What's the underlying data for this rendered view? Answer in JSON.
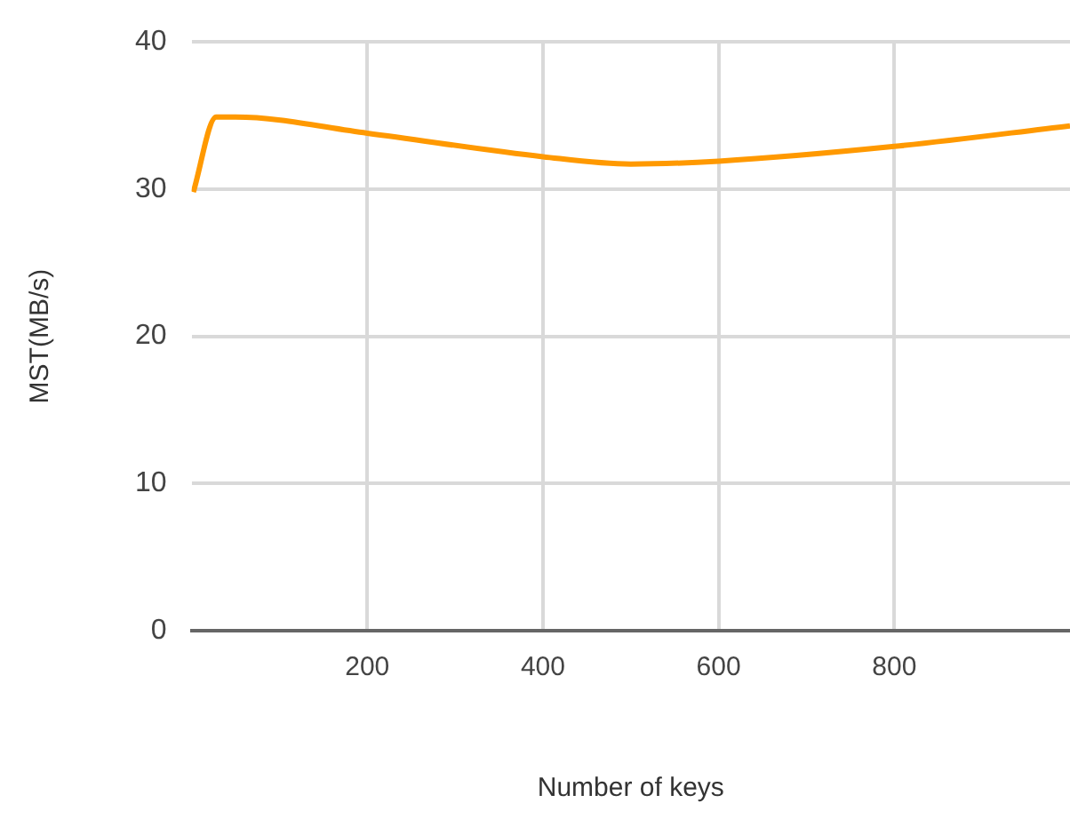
{
  "chart_data": {
    "type": "line",
    "xlabel": "Number of keys",
    "ylabel": "MST(MB/s)",
    "series": [
      {
        "color": "#ff9900",
        "x": [
          2,
          28,
          50,
          200,
          400,
          500,
          600,
          800,
          1000
        ],
        "values": [
          29.8,
          34.9,
          34.9,
          33.8,
          32.2,
          31.7,
          31.9,
          32.9,
          34.3
        ]
      }
    ],
    "xlim": [
      0,
      1000
    ],
    "xticks": [
      200,
      400,
      600,
      800
    ],
    "ylim": [
      0,
      40
    ],
    "yticks": [
      0,
      10,
      20,
      30,
      40
    ],
    "grid": true,
    "legend": false,
    "marker": "none"
  }
}
